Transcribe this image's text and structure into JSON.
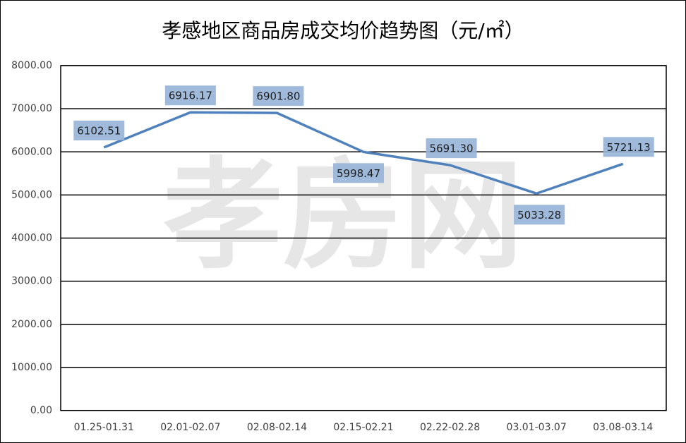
{
  "chart_data": {
    "type": "line",
    "title": "孝感地区商品房成交均价趋势图（元/㎡）",
    "watermark": "孝房网",
    "categories": [
      "01.25-01.31",
      "02.01-02.07",
      "02.08-02.14",
      "02.15-02.21",
      "02.22-02.28",
      "03.01-03.07",
      "03.08-03.14"
    ],
    "values": [
      6102.51,
      6916.17,
      6901.8,
      5998.47,
      5691.3,
      5033.28,
      5721.13
    ],
    "value_labels": [
      "6102.51",
      "6916.17",
      "6901.80",
      "5998.47",
      "5691.30",
      "5033.28",
      "5721.13"
    ],
    "color": "#4f81bd",
    "label_color": "#95b3d7",
    "ylim": [
      0,
      8000
    ],
    "yticks": [
      {
        "value": 0,
        "label": "0.00"
      },
      {
        "value": 1000,
        "label": "1000.00"
      },
      {
        "value": 2000,
        "label": "2000.00"
      },
      {
        "value": 3000,
        "label": "3000.00"
      },
      {
        "value": 4000,
        "label": "4000.00"
      },
      {
        "value": 5000,
        "label": "5000.00"
      },
      {
        "value": 6000,
        "label": "6000.00"
      },
      {
        "value": 7000,
        "label": "7000.00"
      },
      {
        "value": 8000,
        "label": "8000.00"
      }
    ],
    "grid": true
  }
}
